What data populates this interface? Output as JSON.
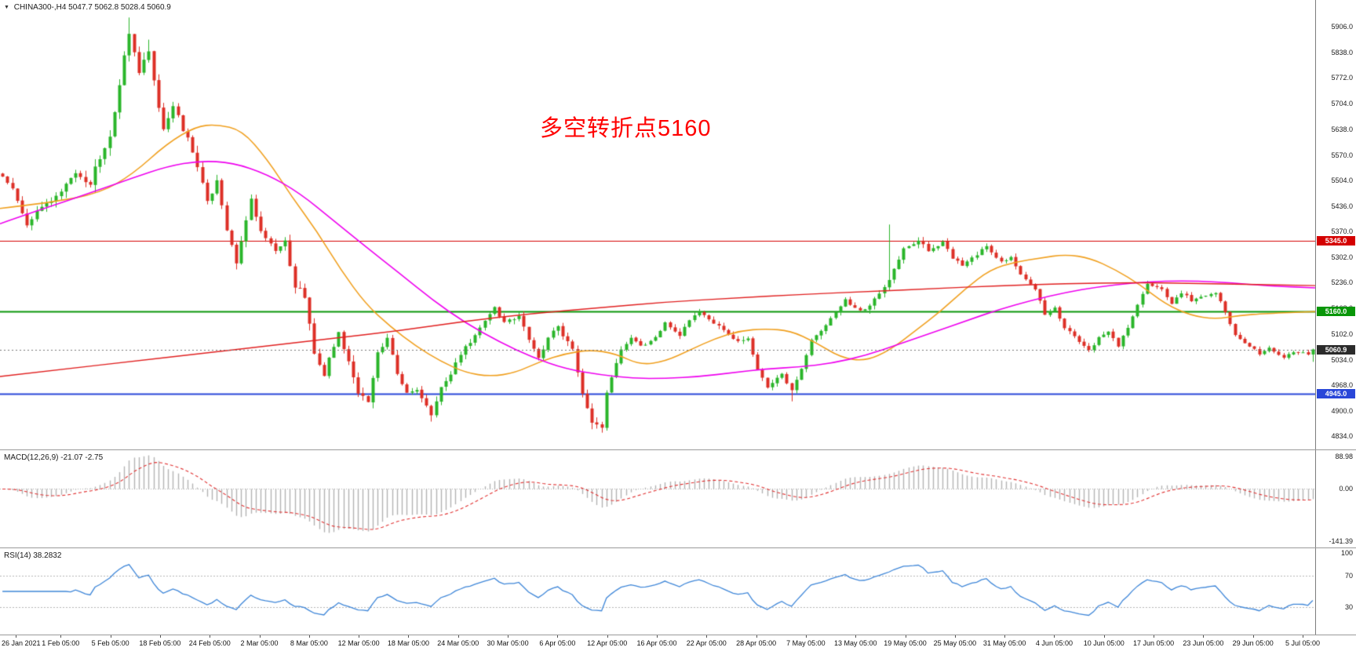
{
  "header": {
    "marker": "▼",
    "title": "CHINA300-,H4 5047.7 5062.8 5028.4 5060.9"
  },
  "annotation": {
    "text": "多空转折点5160",
    "color": "#ff0000"
  },
  "macd_panel": {
    "label": "MACD(12,26,9) -21.07 -2.75",
    "axis": {
      "top": "88.98",
      "zero": "0.00",
      "bottom": "-141.39"
    }
  },
  "rsi_panel": {
    "label": "RSI(14) 38.2832",
    "axis": {
      "top": "100",
      "upper": "70",
      "lower": "30"
    }
  },
  "price_scale": {
    "ticks": [
      "5906.0",
      "5838.0",
      "5772.0",
      "5704.0",
      "5638.0",
      "5570.0",
      "5504.0",
      "5436.0",
      "5370.0",
      "5302.0",
      "5236.0",
      "5168.0",
      "5102.0",
      "5034.0",
      "4968.0",
      "4900.0",
      "4834.0"
    ]
  },
  "date_axis": {
    "labels": [
      "26 Jan 2021",
      "1 Feb 05:00",
      "5 Feb 05:00",
      "18 Feb 05:00",
      "24 Feb 05:00",
      "2 Mar 05:00",
      "8 Mar 05:00",
      "12 Mar 05:00",
      "18 Mar 05:00",
      "24 Mar 05:00",
      "30 Mar 05:00",
      "6 Apr 05:00",
      "12 Apr 05:00",
      "16 Apr 05:00",
      "22 Apr 05:00",
      "28 Apr 05:00",
      "7 May 05:00",
      "13 May 05:00",
      "19 May 05:00",
      "25 May 05:00",
      "31 May 05:00",
      "4 Jun 05:00",
      "10 Jun 05:00",
      "17 Jun 05:00",
      "23 Jun 05:00",
      "29 Jun 05:00",
      "5 Jul 05:00"
    ]
  },
  "chart_data": {
    "type": "candlestick",
    "symbol": "CHINA300-",
    "timeframe": "H4",
    "title_ohlc": {
      "open": 5047.7,
      "high": 5062.8,
      "low": 5028.4,
      "close": 5060.9
    },
    "last_ohlc": {
      "open": 5047.7,
      "high": 5062.8,
      "low": 5028.4,
      "close": 5060.9
    },
    "n_candles": 270,
    "y_range": [
      4834,
      5906
    ],
    "close_anchors": [
      [
        0,
        5510
      ],
      [
        2,
        5480
      ],
      [
        5,
        5385
      ],
      [
        7,
        5430
      ],
      [
        10,
        5455
      ],
      [
        15,
        5515
      ],
      [
        18,
        5490
      ],
      [
        19,
        5540
      ],
      [
        22,
        5610
      ],
      [
        24,
        5760
      ],
      [
        26,
        5895
      ],
      [
        28,
        5790
      ],
      [
        30,
        5845
      ],
      [
        32,
        5700
      ],
      [
        33,
        5640
      ],
      [
        35,
        5695
      ],
      [
        37,
        5640
      ],
      [
        39,
        5580
      ],
      [
        42,
        5450
      ],
      [
        44,
        5500
      ],
      [
        46,
        5370
      ],
      [
        48,
        5290
      ],
      [
        50,
        5400
      ],
      [
        51,
        5450
      ],
      [
        53,
        5370
      ],
      [
        56,
        5320
      ],
      [
        58,
        5340
      ],
      [
        60,
        5230
      ],
      [
        62,
        5200
      ],
      [
        64,
        5050
      ],
      [
        66,
        4985
      ],
      [
        67,
        5040
      ],
      [
        69,
        5100
      ],
      [
        71,
        5030
      ],
      [
        73,
        4950
      ],
      [
        75,
        4920
      ],
      [
        77,
        5050
      ],
      [
        79,
        5090
      ],
      [
        81,
        5000
      ],
      [
        83,
        4945
      ],
      [
        85,
        4950
      ],
      [
        88,
        4890
      ],
      [
        90,
        4960
      ],
      [
        92,
        5000
      ],
      [
        94,
        5050
      ],
      [
        96,
        5080
      ],
      [
        99,
        5140
      ],
      [
        101,
        5170
      ],
      [
        103,
        5130
      ],
      [
        106,
        5150
      ],
      [
        108,
        5090
      ],
      [
        110,
        5040
      ],
      [
        112,
        5090
      ],
      [
        114,
        5120
      ],
      [
        117,
        5060
      ],
      [
        119,
        4940
      ],
      [
        121,
        4870
      ],
      [
        123,
        4860
      ],
      [
        124,
        4950
      ],
      [
        127,
        5060
      ],
      [
        129,
        5090
      ],
      [
        131,
        5070
      ],
      [
        134,
        5090
      ],
      [
        136,
        5130
      ],
      [
        139,
        5100
      ],
      [
        141,
        5140
      ],
      [
        143,
        5160
      ],
      [
        146,
        5130
      ],
      [
        148,
        5110
      ],
      [
        151,
        5080
      ],
      [
        153,
        5090
      ],
      [
        155,
        5010
      ],
      [
        157,
        4965
      ],
      [
        160,
        5000
      ],
      [
        162,
        4950
      ],
      [
        164,
        5010
      ],
      [
        166,
        5090
      ],
      [
        168,
        5110
      ],
      [
        171,
        5160
      ],
      [
        173,
        5190
      ],
      [
        176,
        5160
      ],
      [
        178,
        5180
      ],
      [
        181,
        5220
      ],
      [
        183,
        5270
      ],
      [
        185,
        5330
      ],
      [
        188,
        5345
      ],
      [
        190,
        5320
      ],
      [
        193,
        5340
      ],
      [
        195,
        5300
      ],
      [
        197,
        5280
      ],
      [
        200,
        5310
      ],
      [
        202,
        5330
      ],
      [
        205,
        5290
      ],
      [
        207,
        5300
      ],
      [
        209,
        5260
      ],
      [
        212,
        5220
      ],
      [
        214,
        5150
      ],
      [
        216,
        5170
      ],
      [
        218,
        5120
      ],
      [
        221,
        5080
      ],
      [
        223,
        5060
      ],
      [
        225,
        5090
      ],
      [
        227,
        5110
      ],
      [
        229,
        5070
      ],
      [
        231,
        5120
      ],
      [
        233,
        5180
      ],
      [
        235,
        5230
      ],
      [
        238,
        5220
      ],
      [
        240,
        5180
      ],
      [
        242,
        5210
      ],
      [
        244,
        5190
      ],
      [
        247,
        5200
      ],
      [
        249,
        5210
      ],
      [
        251,
        5160
      ],
      [
        253,
        5100
      ],
      [
        256,
        5070
      ],
      [
        258,
        5050
      ],
      [
        260,
        5065
      ],
      [
        263,
        5040
      ],
      [
        265,
        5055
      ],
      [
        268,
        5048
      ],
      [
        269,
        5060.9
      ]
    ],
    "volatility_anchors": [
      [
        0,
        26
      ],
      [
        22,
        42
      ],
      [
        35,
        40
      ],
      [
        50,
        32
      ],
      [
        64,
        40
      ],
      [
        80,
        30
      ],
      [
        100,
        24
      ],
      [
        120,
        28
      ],
      [
        135,
        18
      ],
      [
        160,
        22
      ],
      [
        185,
        22
      ],
      [
        210,
        18
      ],
      [
        240,
        16
      ],
      [
        269,
        14
      ]
    ],
    "wick_overrides": {
      "high": [
        [
          26,
          5930
        ],
        [
          30,
          5872
        ],
        [
          182,
          5388
        ]
      ],
      "low": [
        [
          88,
          4872
        ],
        [
          121,
          4852
        ],
        [
          123,
          4843
        ],
        [
          162,
          4925
        ]
      ]
    },
    "moving_averages": [
      {
        "name": "ma-fast",
        "color": "#f0a020",
        "width": 1.6,
        "anchors": [
          [
            0,
            5430
          ],
          [
            0.038,
            5445
          ],
          [
            0.076,
            5470
          ],
          [
            0.101,
            5520
          ],
          [
            0.127,
            5600
          ],
          [
            0.149,
            5645
          ],
          [
            0.165,
            5650
          ],
          [
            0.184,
            5635
          ],
          [
            0.203,
            5560
          ],
          [
            0.222,
            5460
          ],
          [
            0.241,
            5370
          ],
          [
            0.259,
            5270
          ],
          [
            0.278,
            5180
          ],
          [
            0.297,
            5120
          ],
          [
            0.316,
            5070
          ],
          [
            0.335,
            5030
          ],
          [
            0.354,
            5000
          ],
          [
            0.373,
            4990
          ],
          [
            0.392,
            5000
          ],
          [
            0.411,
            5030
          ],
          [
            0.43,
            5050
          ],
          [
            0.449,
            5060
          ],
          [
            0.468,
            5050
          ],
          [
            0.487,
            5020
          ],
          [
            0.506,
            5030
          ],
          [
            0.525,
            5060
          ],
          [
            0.544,
            5090
          ],
          [
            0.563,
            5110
          ],
          [
            0.582,
            5115
          ],
          [
            0.601,
            5110
          ],
          [
            0.62,
            5080
          ],
          [
            0.639,
            5040
          ],
          [
            0.658,
            5030
          ],
          [
            0.677,
            5060
          ],
          [
            0.696,
            5110
          ],
          [
            0.715,
            5160
          ],
          [
            0.734,
            5220
          ],
          [
            0.753,
            5270
          ],
          [
            0.772,
            5290
          ],
          [
            0.791,
            5300
          ],
          [
            0.81,
            5310
          ],
          [
            0.829,
            5300
          ],
          [
            0.848,
            5270
          ],
          [
            0.867,
            5230
          ],
          [
            0.886,
            5180
          ],
          [
            0.905,
            5150
          ],
          [
            0.924,
            5140
          ],
          [
            0.943,
            5150
          ],
          [
            0.962,
            5155
          ],
          [
            1,
            5160
          ]
        ]
      },
      {
        "name": "ma-mid",
        "color": "#ee00ee",
        "width": 1.6,
        "anchors": [
          [
            0,
            5390
          ],
          [
            0.025,
            5420
          ],
          [
            0.051,
            5450
          ],
          [
            0.076,
            5480
          ],
          [
            0.101,
            5510
          ],
          [
            0.127,
            5540
          ],
          [
            0.152,
            5555
          ],
          [
            0.177,
            5550
          ],
          [
            0.203,
            5520
          ],
          [
            0.228,
            5470
          ],
          [
            0.253,
            5400
          ],
          [
            0.278,
            5330
          ],
          [
            0.304,
            5260
          ],
          [
            0.329,
            5190
          ],
          [
            0.354,
            5130
          ],
          [
            0.38,
            5080
          ],
          [
            0.405,
            5040
          ],
          [
            0.43,
            5010
          ],
          [
            0.456,
            4995
          ],
          [
            0.481,
            4985
          ],
          [
            0.506,
            4985
          ],
          [
            0.532,
            4990
          ],
          [
            0.557,
            5000
          ],
          [
            0.582,
            5010
          ],
          [
            0.608,
            5015
          ],
          [
            0.633,
            5025
          ],
          [
            0.658,
            5045
          ],
          [
            0.684,
            5075
          ],
          [
            0.709,
            5105
          ],
          [
            0.734,
            5135
          ],
          [
            0.759,
            5165
          ],
          [
            0.785,
            5190
          ],
          [
            0.81,
            5210
          ],
          [
            0.835,
            5225
          ],
          [
            0.861,
            5235
          ],
          [
            0.886,
            5240
          ],
          [
            0.911,
            5240
          ],
          [
            0.937,
            5235
          ],
          [
            0.962,
            5228
          ],
          [
            1,
            5222
          ]
        ]
      },
      {
        "name": "ma-slow",
        "color": "#e02020",
        "width": 1.4,
        "anchors": [
          [
            0,
            4990
          ],
          [
            0.051,
            5010
          ],
          [
            0.101,
            5030
          ],
          [
            0.152,
            5050
          ],
          [
            0.203,
            5070
          ],
          [
            0.253,
            5090
          ],
          [
            0.304,
            5110
          ],
          [
            0.354,
            5135
          ],
          [
            0.405,
            5155
          ],
          [
            0.456,
            5170
          ],
          [
            0.506,
            5185
          ],
          [
            0.557,
            5195
          ],
          [
            0.608,
            5205
          ],
          [
            0.658,
            5212
          ],
          [
            0.709,
            5220
          ],
          [
            0.759,
            5228
          ],
          [
            0.81,
            5233
          ],
          [
            0.861,
            5236
          ],
          [
            0.911,
            5234
          ],
          [
            1,
            5228
          ]
        ]
      }
    ],
    "levels": [
      {
        "value": 5345.0,
        "label": "5345.0",
        "color": "#d40000",
        "width": 1
      },
      {
        "value": 5160.0,
        "label": "5160.0",
        "color": "#089608",
        "width": 2
      },
      {
        "value": 4945.0,
        "label": "4945.0",
        "color": "#2946d8",
        "width": 2
      }
    ],
    "current": {
      "value": 5060.9,
      "label": "5060.9",
      "color": "#2b2b2b",
      "line_color": "#777777"
    },
    "macd": {
      "params": [
        12,
        26,
        9
      ],
      "display": "-21.07 -2.75",
      "range": [
        -150,
        95
      ],
      "hist_color": "#b3b3b3",
      "signal_color": "#e03030"
    },
    "rsi": {
      "period": 14,
      "value": 38.2832,
      "color": "#3e86d8",
      "levels": [
        70,
        30
      ]
    },
    "colors": {
      "up": "#2ab52a",
      "down": "#dd2f26"
    }
  }
}
